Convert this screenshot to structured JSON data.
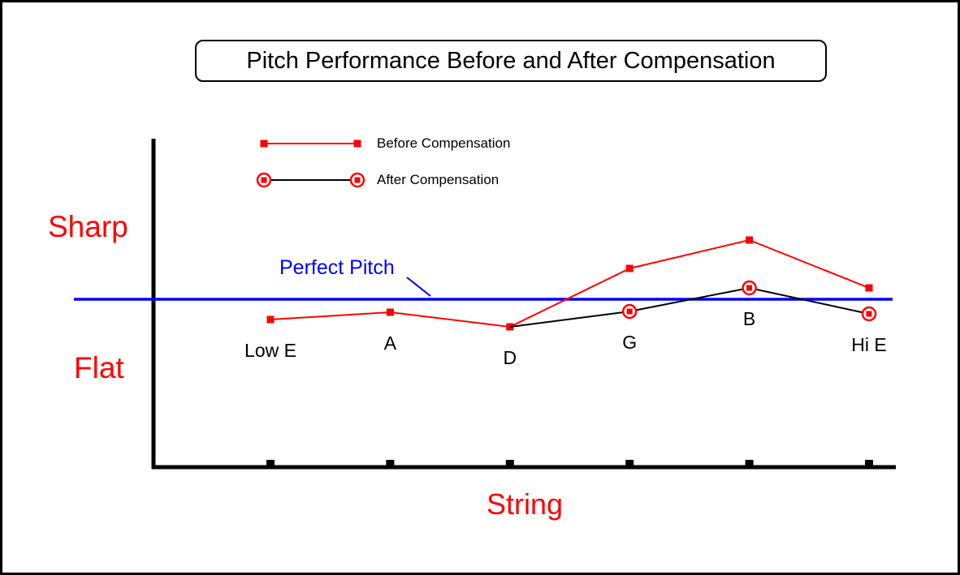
{
  "labels": {
    "sharp": "Sharp",
    "flat": "Flat",
    "perfect_pitch": "Perfect Pitch"
  },
  "colors": {
    "before_series": "#ff0000",
    "after_series_line": "#000000",
    "marker_red": "#ff0000",
    "perfect_pitch_blue": "#0000ff",
    "axis_black": "#000000",
    "axis_label_red": "#ff0000"
  },
  "chart_data": {
    "type": "line",
    "title": "Pitch Performance Before and After Compensation",
    "xlabel": "String",
    "categories": [
      "Low E",
      "A",
      "D",
      "G",
      "B",
      "Hi E"
    ],
    "y_axis": {
      "style": "qualitative",
      "above_reference": "Sharp",
      "below_reference": "Flat"
    },
    "y_units": "relative pitch deviation (0 = perfect pitch, positive = sharp)",
    "reference_line": {
      "label": "Perfect Pitch",
      "value": 0,
      "color": "#0000ff"
    },
    "grid": false,
    "legend_position": "top-inside-left",
    "series": [
      {
        "name": "Before Compensation",
        "line_color": "#ff0000",
        "marker": "square",
        "marker_color": "#ff0000",
        "values": [
          -25,
          -16,
          -34,
          38,
          73,
          14
        ],
        "markers": [
          "square",
          "square",
          "square",
          "square",
          "square",
          "square"
        ]
      },
      {
        "name": "After Compensation",
        "line_color": "#000000",
        "marker": "circled-square",
        "marker_color": "#ff0000",
        "values": [
          null,
          null,
          -34,
          -15,
          14,
          -18
        ],
        "markers": [
          "none",
          "none",
          "none",
          "circled-square",
          "circled-square",
          "circled-square"
        ]
      }
    ]
  }
}
